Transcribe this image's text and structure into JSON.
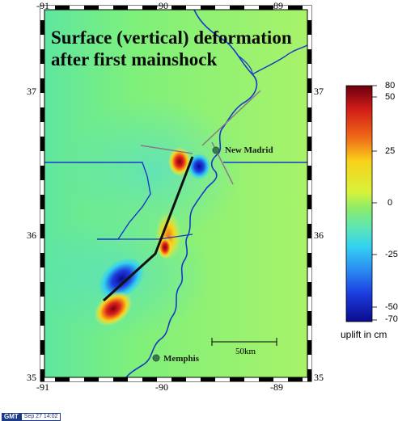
{
  "map": {
    "title_line1": "Surface (vertical) deformation",
    "title_line2": "after first mainshock",
    "lon_ticks_top": [
      "-91",
      "-90",
      "-89"
    ],
    "lon_ticks_bottom": [
      "-91",
      "-90",
      "-89"
    ],
    "lat_ticks_left": [
      "37",
      "36",
      "35"
    ],
    "lat_ticks_right": [
      "37",
      "36",
      "35"
    ],
    "places": {
      "new_madrid": "New Madrid",
      "memphis": "Memphis"
    },
    "scale_bar_label": "50km",
    "colors": {
      "background": "#7fea7a",
      "river": "#1838c8",
      "state_border": "#1838c8",
      "fault_trace": "#111111",
      "gray_faults": "#8a7a8a"
    }
  },
  "colorbar": {
    "labels": [
      "80",
      "50",
      "25",
      "0",
      "-25",
      "-50",
      "-70"
    ],
    "caption": "uplift in cm",
    "colors": [
      "#7a0010",
      "#d21c18",
      "#f06a18",
      "#f8d21a",
      "#d8f23a",
      "#8cec6a",
      "#5ee6b4",
      "#34d2f0",
      "#2a8cf2",
      "#1c3ee0",
      "#0a0a8c"
    ]
  },
  "stamp": {
    "badge": "GMT",
    "date": "Sep 27 14:02"
  }
}
